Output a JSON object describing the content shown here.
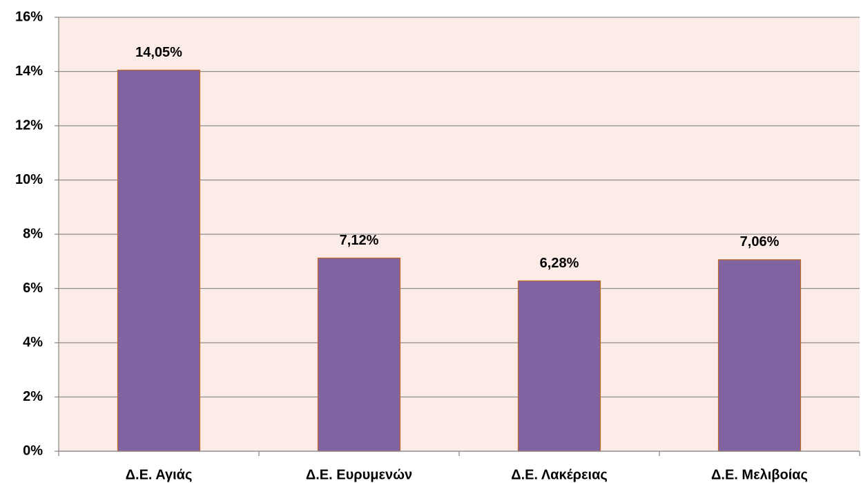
{
  "chart_data": {
    "type": "bar",
    "categories": [
      "Δ.Ε. Αγιάς",
      "Δ.Ε. Ευρυμενών",
      "Δ.Ε. Λακέρειας",
      "Δ.Ε. Μελιβοίας"
    ],
    "values": [
      14.05,
      7.12,
      6.28,
      7.06
    ],
    "value_labels": [
      "14,05%",
      "7,12%",
      "6,28%",
      "7,06%"
    ],
    "color": "#8064a2",
    "ylim": [
      0,
      16
    ],
    "yticks": [
      {
        "value": 0,
        "label": "0%"
      },
      {
        "value": 2,
        "label": "2%"
      },
      {
        "value": 4,
        "label": "4%"
      },
      {
        "value": 6,
        "label": "6%"
      },
      {
        "value": 8,
        "label": "8%"
      },
      {
        "value": 10,
        "label": "10%"
      },
      {
        "value": 12,
        "label": "12%"
      },
      {
        "value": 14,
        "label": "14%"
      },
      {
        "value": 16,
        "label": "16%"
      }
    ],
    "grid": true
  }
}
